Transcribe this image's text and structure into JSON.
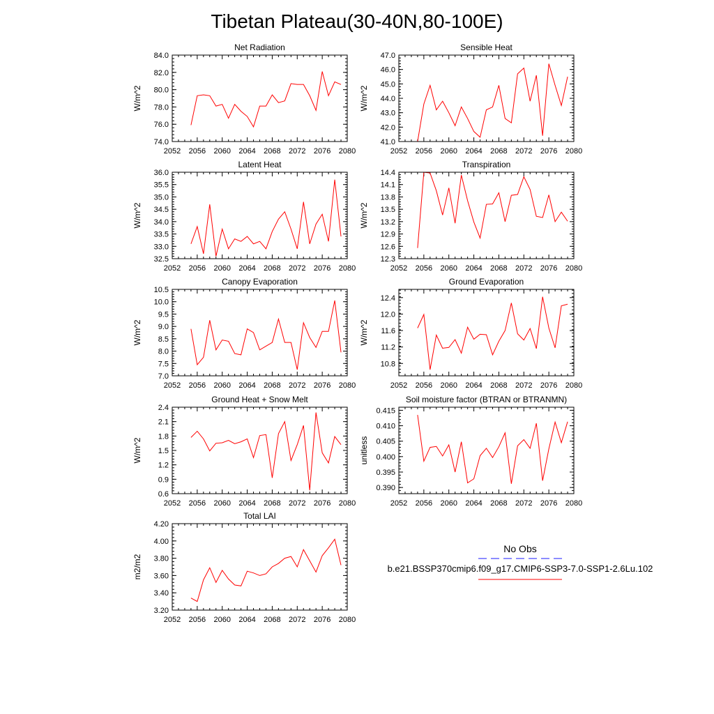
{
  "figure": {
    "title": "Tibetan Plateau(30-40N,80-100E)"
  },
  "legend": {
    "obs_label": "No Obs",
    "case_label": "b.e21.BSSP370cmip6.f09_g17.CMIP6-SSP3-7.0-SSP1-2.6Lu.102",
    "obs_color": "#1a1aff",
    "case_color": "#ff0000"
  },
  "chart_data": [
    {
      "type": "line",
      "title": "Net Radiation",
      "ylabel": "W/m^2",
      "xlim": [
        2052,
        2080
      ],
      "xticks": [
        "2052",
        "2056",
        "2060",
        "2064",
        "2068",
        "2072",
        "2076",
        "2080"
      ],
      "ylim": [
        74.0,
        84.0
      ],
      "yticks": [
        "74.0",
        "76.0",
        "78.0",
        "80.0",
        "82.0",
        "84.0"
      ],
      "x": [
        2055,
        2056,
        2057,
        2058,
        2059,
        2060,
        2061,
        2062,
        2063,
        2064,
        2065,
        2066,
        2067,
        2068,
        2069,
        2070,
        2071,
        2072,
        2073,
        2074,
        2075,
        2076,
        2077,
        2078,
        2079
      ],
      "series": [
        {
          "values": [
            75.9,
            79.3,
            79.4,
            79.3,
            78.1,
            78.3,
            76.7,
            78.3,
            77.5,
            76.9,
            75.7,
            78.1,
            78.1,
            79.4,
            78.5,
            78.7,
            80.7,
            80.6,
            80.6,
            79.3,
            77.6,
            82.1,
            79.3,
            80.9,
            80.6
          ]
        }
      ]
    },
    {
      "type": "line",
      "title": "Sensible Heat",
      "ylabel": "W/m^2",
      "xlim": [
        2052,
        2080
      ],
      "xticks": [
        "2052",
        "2056",
        "2060",
        "2064",
        "2068",
        "2072",
        "2076",
        "2080"
      ],
      "ylim": [
        41.0,
        47.0
      ],
      "yticks": [
        "41.0",
        "42.0",
        "43.0",
        "44.0",
        "45.0",
        "46.0",
        "47.0"
      ],
      "x": [
        2055,
        2056,
        2057,
        2058,
        2059,
        2060,
        2061,
        2062,
        2063,
        2064,
        2065,
        2066,
        2067,
        2068,
        2069,
        2070,
        2071,
        2072,
        2073,
        2074,
        2075,
        2076,
        2077,
        2078,
        2079
      ],
      "series": [
        {
          "values": [
            41.0,
            43.6,
            44.9,
            43.2,
            43.8,
            43.0,
            42.1,
            43.4,
            42.6,
            41.7,
            41.3,
            43.2,
            43.4,
            44.9,
            42.6,
            42.3,
            45.7,
            46.1,
            43.8,
            45.6,
            41.4,
            46.4,
            44.9,
            43.5,
            45.5
          ]
        }
      ]
    },
    {
      "type": "line",
      "title": "Latent Heat",
      "ylabel": "W/m^2",
      "xlim": [
        2052,
        2080
      ],
      "xticks": [
        "2052",
        "2056",
        "2060",
        "2064",
        "2068",
        "2072",
        "2076",
        "2080"
      ],
      "ylim": [
        32.5,
        36.0
      ],
      "yticks": [
        "32.5",
        "33.0",
        "33.5",
        "34.0",
        "34.5",
        "35.0",
        "35.5",
        "36.0"
      ],
      "x": [
        2055,
        2056,
        2057,
        2058,
        2059,
        2060,
        2061,
        2062,
        2063,
        2064,
        2065,
        2066,
        2067,
        2068,
        2069,
        2070,
        2071,
        2072,
        2073,
        2074,
        2075,
        2076,
        2077,
        2078,
        2079
      ],
      "series": [
        {
          "values": [
            33.1,
            33.8,
            32.7,
            34.7,
            32.6,
            33.7,
            32.9,
            33.3,
            33.2,
            33.4,
            33.1,
            33.2,
            32.9,
            33.6,
            34.1,
            34.4,
            33.7,
            32.9,
            34.8,
            33.1,
            33.9,
            34.3,
            33.2,
            35.7,
            33.4
          ]
        }
      ]
    },
    {
      "type": "line",
      "title": "Transpiration",
      "ylabel": "W/m^2",
      "xlim": [
        2052,
        2080
      ],
      "xticks": [
        "2052",
        "2056",
        "2060",
        "2064",
        "2068",
        "2072",
        "2076",
        "2080"
      ],
      "ylim": [
        12.3,
        14.4
      ],
      "yticks": [
        "12.3",
        "12.6",
        "12.9",
        "13.2",
        "13.5",
        "13.8",
        "14.1",
        "14.4"
      ],
      "x": [
        2055,
        2056,
        2057,
        2058,
        2059,
        2060,
        2061,
        2062,
        2063,
        2064,
        2065,
        2066,
        2067,
        2068,
        2069,
        2070,
        2071,
        2072,
        2073,
        2074,
        2075,
        2076,
        2077,
        2078,
        2079
      ],
      "series": [
        {
          "values": [
            12.56,
            14.4,
            14.38,
            13.95,
            13.36,
            14.02,
            13.16,
            14.33,
            13.71,
            13.19,
            12.8,
            13.62,
            13.63,
            13.9,
            13.2,
            13.84,
            13.86,
            14.29,
            13.98,
            13.33,
            13.3,
            13.85,
            13.2,
            13.43,
            13.21
          ]
        }
      ]
    },
    {
      "type": "line",
      "title": "Canopy Evaporation",
      "ylabel": "W/m^2",
      "xlim": [
        2052,
        2080
      ],
      "xticks": [
        "2052",
        "2056",
        "2060",
        "2064",
        "2068",
        "2072",
        "2076",
        "2080"
      ],
      "ylim": [
        7.0,
        10.5
      ],
      "yticks": [
        "7.0",
        "7.5",
        "8.0",
        "8.5",
        "9.0",
        "9.5",
        "10.0",
        "10.5"
      ],
      "x": [
        2055,
        2056,
        2057,
        2058,
        2059,
        2060,
        2061,
        2062,
        2063,
        2064,
        2065,
        2066,
        2067,
        2068,
        2069,
        2070,
        2071,
        2072,
        2073,
        2074,
        2075,
        2076,
        2077,
        2078,
        2079
      ],
      "series": [
        {
          "values": [
            8.9,
            7.45,
            7.75,
            9.25,
            8.05,
            8.45,
            8.4,
            7.9,
            7.85,
            8.9,
            8.75,
            8.05,
            8.2,
            8.35,
            9.3,
            8.35,
            8.35,
            7.25,
            9.15,
            8.55,
            8.15,
            8.8,
            8.8,
            10.05,
            7.95
          ]
        }
      ]
    },
    {
      "type": "line",
      "title": "Ground Evaporation",
      "ylabel": "W/m^2",
      "xlim": [
        2052,
        2080
      ],
      "xticks": [
        "2052",
        "2056",
        "2060",
        "2064",
        "2068",
        "2072",
        "2076",
        "2080"
      ],
      "ylim": [
        10.5,
        12.6
      ],
      "yticks": [
        "10.8",
        "11.2",
        "11.6",
        "12.0",
        "12.4"
      ],
      "x": [
        2055,
        2056,
        2057,
        2058,
        2059,
        2060,
        2061,
        2062,
        2063,
        2064,
        2065,
        2066,
        2067,
        2068,
        2069,
        2070,
        2071,
        2072,
        2073,
        2074,
        2075,
        2076,
        2077,
        2078,
        2079
      ],
      "series": [
        {
          "values": [
            11.66,
            11.99,
            10.65,
            11.49,
            11.17,
            11.19,
            11.38,
            11.05,
            11.68,
            11.39,
            11.51,
            11.5,
            11.01,
            11.34,
            11.6,
            12.27,
            11.52,
            11.37,
            11.65,
            11.16,
            12.42,
            11.66,
            11.18,
            12.2,
            12.24
          ]
        }
      ]
    },
    {
      "type": "line",
      "title": "Ground Heat + Snow Melt",
      "ylabel": "W/m^2",
      "xlim": [
        2052,
        2080
      ],
      "xticks": [
        "2052",
        "2056",
        "2060",
        "2064",
        "2068",
        "2072",
        "2076",
        "2080"
      ],
      "ylim": [
        0.6,
        2.4
      ],
      "yticks": [
        "0.6",
        "0.9",
        "1.2",
        "1.5",
        "1.8",
        "2.1",
        "2.4"
      ],
      "x": [
        2055,
        2056,
        2057,
        2058,
        2059,
        2060,
        2061,
        2062,
        2063,
        2064,
        2065,
        2066,
        2067,
        2068,
        2069,
        2070,
        2071,
        2072,
        2073,
        2074,
        2075,
        2076,
        2077,
        2078,
        2079
      ],
      "series": [
        {
          "values": [
            1.77,
            1.9,
            1.74,
            1.49,
            1.65,
            1.66,
            1.71,
            1.64,
            1.68,
            1.74,
            1.35,
            1.81,
            1.83,
            0.93,
            1.85,
            2.1,
            1.29,
            1.62,
            2.02,
            0.67,
            2.29,
            1.45,
            1.24,
            1.79,
            1.62
          ]
        }
      ]
    },
    {
      "type": "line",
      "title": "Soil moisture factor (BTRAN or BTRANMN)",
      "ylabel": "unitless",
      "xlim": [
        2052,
        2080
      ],
      "xticks": [
        "2052",
        "2056",
        "2060",
        "2064",
        "2068",
        "2072",
        "2076",
        "2080"
      ],
      "ylim": [
        0.388,
        0.416
      ],
      "yticks": [
        "0.390",
        "0.395",
        "0.400",
        "0.405",
        "0.410",
        "0.415"
      ],
      "x": [
        2055,
        2056,
        2057,
        2058,
        2059,
        2060,
        2061,
        2062,
        2063,
        2064,
        2065,
        2066,
        2067,
        2068,
        2069,
        2070,
        2071,
        2072,
        2073,
        2074,
        2075,
        2076,
        2077,
        2078,
        2079
      ],
      "series": [
        {
          "values": [
            0.4135,
            0.3985,
            0.403,
            0.4033,
            0.4002,
            0.4038,
            0.395,
            0.4048,
            0.3915,
            0.3928,
            0.4003,
            0.4027,
            0.3997,
            0.4032,
            0.4077,
            0.3912,
            0.4035,
            0.4055,
            0.4027,
            0.4108,
            0.3922,
            0.4025,
            0.4112,
            0.4045,
            0.4113
          ]
        }
      ]
    },
    {
      "type": "line",
      "title": "Total LAI",
      "ylabel": "m2/m2",
      "xlim": [
        2052,
        2080
      ],
      "xticks": [
        "2052",
        "2056",
        "2060",
        "2064",
        "2068",
        "2072",
        "2076",
        "2080"
      ],
      "ylim": [
        3.2,
        4.2
      ],
      "yticks": [
        "3.20",
        "3.40",
        "3.60",
        "3.80",
        "4.00",
        "4.20"
      ],
      "x": [
        2055,
        2056,
        2057,
        2058,
        2059,
        2060,
        2061,
        2062,
        2063,
        2064,
        2065,
        2066,
        2067,
        2068,
        2069,
        2070,
        2071,
        2072,
        2073,
        2074,
        2075,
        2076,
        2077,
        2078,
        2079
      ],
      "series": [
        {
          "values": [
            3.34,
            3.3,
            3.55,
            3.69,
            3.52,
            3.66,
            3.56,
            3.49,
            3.48,
            3.65,
            3.63,
            3.6,
            3.62,
            3.7,
            3.74,
            3.8,
            3.82,
            3.7,
            3.9,
            3.77,
            3.64,
            3.83,
            3.92,
            4.02,
            3.72
          ]
        }
      ]
    }
  ]
}
